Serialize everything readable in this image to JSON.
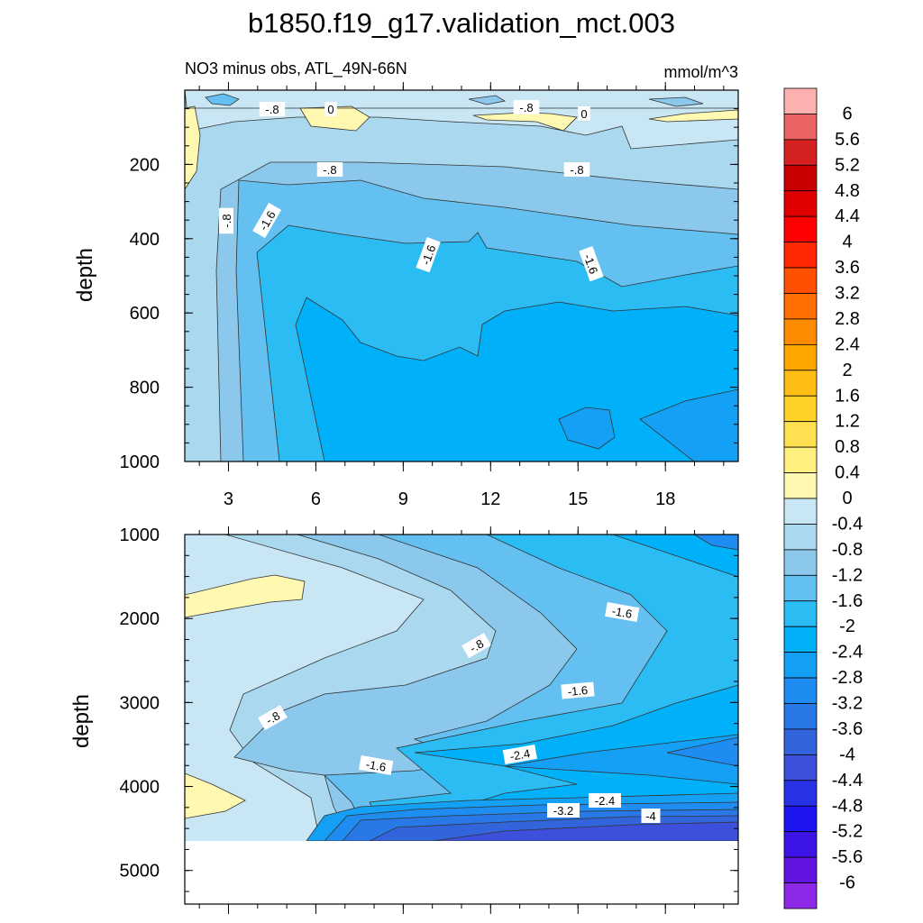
{
  "chart_data": {
    "type": "heatmap",
    "title": "b1850.f19_g17.validation_mct.003",
    "subtitle_left": "NO3 minus obs, ATL_49N-66N",
    "subtitle_right": "mmol/m^3",
    "colorbar": {
      "labels": [
        "6",
        "5.6",
        "5.2",
        "4.8",
        "4.4",
        "4",
        "3.6",
        "3.2",
        "2.8",
        "2.4",
        "2",
        "1.6",
        "1.2",
        "0.8",
        "0.4",
        "0",
        "-0.4",
        "-0.8",
        "-1.2",
        "-1.6",
        "-2",
        "-2.4",
        "-2.8",
        "-3.2",
        "-3.6",
        "-4",
        "-4.4",
        "-4.8",
        "-5.2",
        "-5.6",
        "-6"
      ],
      "colors": [
        "#fcb0b0",
        "#ea6464",
        "#d42020",
        "#c80000",
        "#e00000",
        "#ff0000",
        "#ff2800",
        "#ff5000",
        "#ff6e00",
        "#ff8c00",
        "#ffa500",
        "#ffbe14",
        "#ffd228",
        "#ffe050",
        "#fff080",
        "#fff8b0",
        "#c8e6f4",
        "#aad8ef",
        "#8cc8ec",
        "#64c0f0",
        "#2cbcf4",
        "#00b0f8",
        "#14a0f4",
        "#1e8cf0",
        "#2878e8",
        "#3264dc",
        "#3c50dc",
        "#2832e6",
        "#1e14f0",
        "#3c14e6",
        "#6414e0",
        "#8c28e6"
      ]
    },
    "panels": [
      {
        "name": "upper",
        "ylabel": "depth",
        "xlabel": "",
        "xticks": [
          "3",
          "6",
          "9",
          "12",
          "15",
          "18"
        ],
        "yticks": [
          "200",
          "400",
          "600",
          "800",
          "1000"
        ],
        "xlim": [
          1.5,
          20.5
        ],
        "ylim": [
          1000,
          0
        ],
        "contour_labels": [
          "-.8",
          "0",
          "-.8",
          "0",
          "-.8",
          "-.8",
          "-1.6",
          "-.8",
          "-1.6",
          "-1.6"
        ]
      },
      {
        "name": "lower",
        "ylabel": "depth",
        "xlabel": "",
        "xticks": [],
        "yticks": [
          "1000",
          "2000",
          "3000",
          "4000",
          "5000"
        ],
        "xlim": [
          1.5,
          20.5
        ],
        "ylim": [
          5400,
          1000
        ],
        "contour_labels": [
          "-1.6",
          "-.8",
          "-1.6",
          "-.8",
          "-2.4",
          "-1.6",
          "-2.4",
          "-3.2",
          "-4"
        ]
      }
    ]
  }
}
